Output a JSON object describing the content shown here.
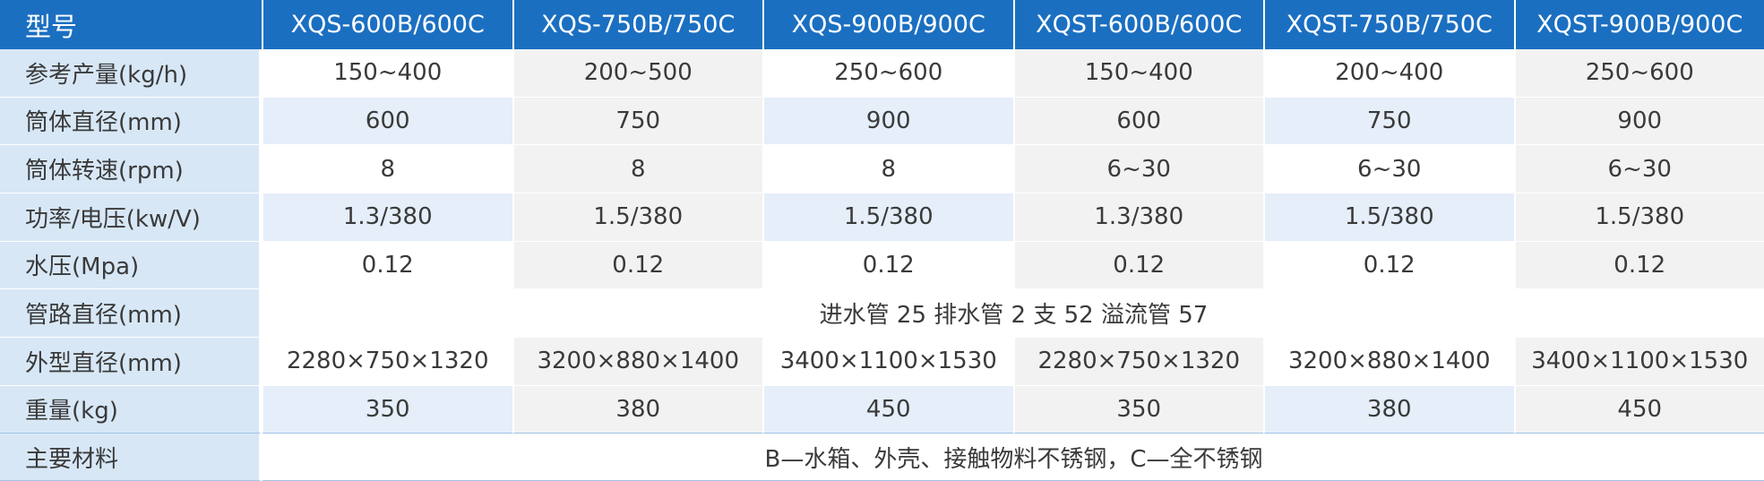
{
  "header": {
    "corner": "型号",
    "models": [
      "XQS-600B/600C",
      "XQS-750B/750C",
      "XQS-900B/900C",
      "XQST-600B/600C",
      "XQST-750B/750C",
      "XQST-900B/900C"
    ]
  },
  "rows": [
    {
      "label": "参考产量(kg/h)",
      "values": [
        "150~400",
        "200~500",
        "250~600",
        "150~400",
        "200~400",
        "250~600"
      ]
    },
    {
      "label": "筒体直径(mm)",
      "values": [
        "600",
        "750",
        "900",
        "600",
        "750",
        "900"
      ]
    },
    {
      "label": "筒体转速(rpm)",
      "values": [
        "8",
        "8",
        "8",
        "6~30",
        "6~30",
        "6~30"
      ]
    },
    {
      "label": "功率/电压(kw/V)",
      "values": [
        "1.3/380",
        "1.5/380",
        "1.5/380",
        "1.3/380",
        "1.5/380",
        "1.5/380"
      ]
    },
    {
      "label": "水压(Mpa)",
      "values": [
        "0.12",
        "0.12",
        "0.12",
        "0.12",
        "0.12",
        "0.12"
      ]
    },
    {
      "label": "管路直径(mm)",
      "span": "进水管 25 排水管 2 支 52 溢流管 57"
    },
    {
      "label": "外型直径(mm)",
      "values": [
        "2280×750×1320",
        "3200×880×1400",
        "3400×1100×1530",
        "2280×750×1320",
        "3200×880×1400",
        "3400×1100×1530"
      ]
    },
    {
      "label": "重量(kg)",
      "values": [
        "350",
        "380",
        "450",
        "350",
        "380",
        "450"
      ]
    },
    {
      "label": "主要材料",
      "span": "B—水箱、外壳、接触物料不锈钢，C—全不锈钢"
    }
  ],
  "colors": {
    "header_bg": "#1b6fc1",
    "label_bg": "#d7e7f6",
    "cell_blue": "#e5eef9",
    "cell_grey": "#f2f2f2",
    "text": "#3a3a3a"
  }
}
